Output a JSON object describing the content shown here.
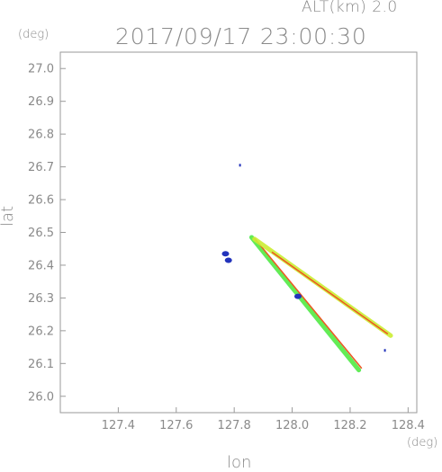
{
  "header": {
    "alt_label": "ALT(km) 2.0",
    "timestamp": "2017/09/17 23:00:30"
  },
  "chart_data": {
    "type": "scatter",
    "xlabel": "lon",
    "ylabel": "lat",
    "x_unit": "(deg)",
    "y_unit": "(deg)",
    "xlim": [
      127.2,
      128.43
    ],
    "ylim": [
      25.95,
      27.05
    ],
    "xticks": [
      127.4,
      127.6,
      127.8,
      128.0,
      128.2,
      128.4
    ],
    "yticks": [
      26.0,
      26.1,
      26.2,
      26.3,
      26.4,
      26.5,
      26.6,
      26.7,
      26.8,
      26.9,
      27.0
    ],
    "grid": false,
    "colors": {
      "axis": "#9a9a9a",
      "text": "#8a8a8a",
      "strong": "#2233bb",
      "light": "#44ddee",
      "moderate": "#66ee44",
      "heavy": "#ee5522",
      "mid": "#ccee33"
    },
    "features": [
      {
        "kind": "speck",
        "lon": 127.82,
        "lat": 26.705,
        "color": "#2233bb"
      },
      {
        "kind": "blob",
        "lon": 127.77,
        "lat": 26.435,
        "color": "#2233bb"
      },
      {
        "kind": "blob",
        "lon": 127.78,
        "lat": 26.415,
        "color": "#2233bb"
      },
      {
        "kind": "streak",
        "from": [
          127.86,
          26.485
        ],
        "to": [
          128.23,
          26.08
        ],
        "color": "#44ddee"
      },
      {
        "kind": "streak",
        "from": [
          127.86,
          26.485
        ],
        "to": [
          128.23,
          26.08
        ],
        "color": "#66ee44"
      },
      {
        "kind": "edge",
        "from": [
          127.87,
          26.482
        ],
        "to": [
          128.24,
          26.085
        ],
        "color": "#ee5522"
      },
      {
        "kind": "blob",
        "lon": 128.02,
        "lat": 26.305,
        "color": "#2233bb"
      },
      {
        "kind": "streak",
        "from": [
          127.87,
          26.48
        ],
        "to": [
          128.34,
          26.185
        ],
        "color": "#ccee33"
      },
      {
        "kind": "edge",
        "from": [
          127.93,
          26.44
        ],
        "to": [
          128.33,
          26.19
        ],
        "color": "#ee5522"
      },
      {
        "kind": "speck",
        "lon": 128.32,
        "lat": 26.14,
        "color": "#2233bb"
      }
    ]
  }
}
